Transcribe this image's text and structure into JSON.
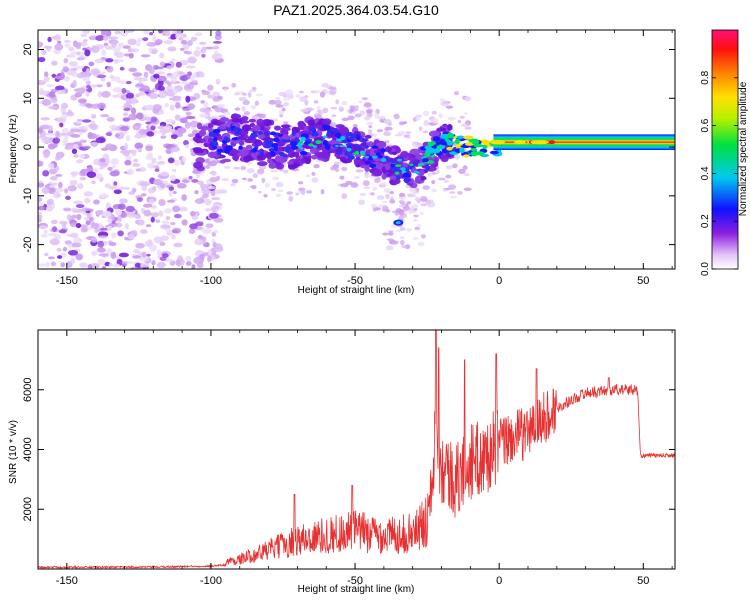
{
  "title": "PAZ1.2025.364.03.54.G10",
  "chart_data": [
    {
      "type": "heatmap",
      "xlabel": "Height of straight line (km)",
      "ylabel": "Frequency (Hz)",
      "xlim": [
        -160,
        61
      ],
      "ylim": [
        -25,
        24
      ],
      "xticks": [
        -150,
        -100,
        -50,
        0,
        50
      ],
      "yticks": [
        -20,
        -10,
        0,
        10,
        20
      ],
      "colorbar": {
        "label": "Normalized spectral amplitude",
        "range": [
          0,
          1
        ],
        "ticks": [
          0.0,
          0.2,
          0.4,
          0.6,
          0.8
        ],
        "tick_labels": [
          "0.0",
          "0.2",
          "0.4",
          "0.6",
          "0.8"
        ]
      },
      "ridge": [
        {
          "x": -105,
          "y": 0
        },
        {
          "x": -90,
          "y": 2
        },
        {
          "x": -75,
          "y": 0
        },
        {
          "x": -60,
          "y": 2
        },
        {
          "x": -50,
          "y": 0
        },
        {
          "x": -40,
          "y": -3
        },
        {
          "x": -30,
          "y": -5
        },
        {
          "x": -20,
          "y": 1
        },
        {
          "x": -10,
          "y": 0
        },
        {
          "x": 0,
          "y": 0
        },
        {
          "x": 20,
          "y": 1
        },
        {
          "x": 60,
          "y": 1
        }
      ]
    },
    {
      "type": "line",
      "xlabel": "Height of straight line (km)",
      "ylabel": "SNR (10 * v/v)",
      "xlim": [
        -160,
        61
      ],
      "ylim": [
        0,
        8000
      ],
      "xticks": [
        -150,
        -100,
        -50,
        0,
        50
      ],
      "yticks": [
        2000,
        4000,
        6000
      ],
      "color": "#e83030",
      "envelope": [
        {
          "x": -160,
          "y": 80
        },
        {
          "x": -120,
          "y": 100
        },
        {
          "x": -100,
          "y": 200
        },
        {
          "x": -90,
          "y": 400
        },
        {
          "x": -80,
          "y": 800
        },
        {
          "x": -70,
          "y": 1200
        },
        {
          "x": -60,
          "y": 1400
        },
        {
          "x": -50,
          "y": 1600
        },
        {
          "x": -40,
          "y": 1400
        },
        {
          "x": -30,
          "y": 1500
        },
        {
          "x": -25,
          "y": 2000
        },
        {
          "x": -22,
          "y": 4500
        },
        {
          "x": -20,
          "y": 3500
        },
        {
          "x": -15,
          "y": 2900
        },
        {
          "x": -10,
          "y": 3600
        },
        {
          "x": -5,
          "y": 3700
        },
        {
          "x": 0,
          "y": 4200
        },
        {
          "x": 10,
          "y": 4600
        },
        {
          "x": 20,
          "y": 5400
        },
        {
          "x": 30,
          "y": 5900
        },
        {
          "x": 40,
          "y": 6000
        },
        {
          "x": 48,
          "y": 6000
        },
        {
          "x": 49,
          "y": 3800
        },
        {
          "x": 61,
          "y": 3800
        }
      ],
      "peaks": [
        {
          "x": -71,
          "y": 2500
        },
        {
          "x": -51,
          "y": 2800
        },
        {
          "x": -22,
          "y": 8000
        },
        {
          "x": -21,
          "y": 7400
        },
        {
          "x": -12,
          "y": 7000
        },
        {
          "x": -1,
          "y": 7200
        },
        {
          "x": 13,
          "y": 6700
        },
        {
          "x": 38,
          "y": 6400
        }
      ]
    }
  ]
}
